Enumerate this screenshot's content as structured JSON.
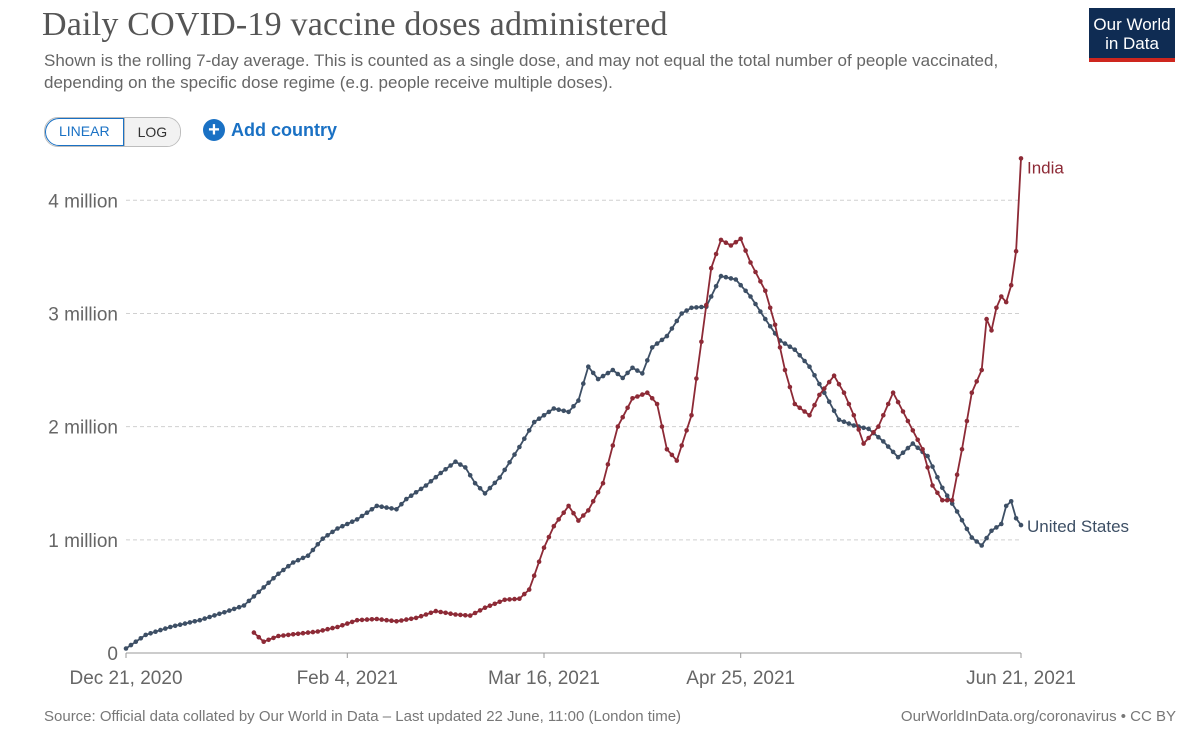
{
  "header": {
    "title": "Daily COVID-19 vaccine doses administered",
    "subtitle": "Shown is the rolling 7-day average. This is counted as a single dose, and may not equal the total number of people vaccinated, depending on the specific dose regime (e.g. people receive multiple doses).",
    "logo_line1": "Our World",
    "logo_line2": "in Data"
  },
  "controls": {
    "linear_label": "LINEAR",
    "log_label": "LOG",
    "add_country_label": "Add country",
    "add_icon": "plus-circle-icon"
  },
  "footer": {
    "source": "Source: Official data collated by Our World in Data – Last updated 22 June, 11:00 (London time)",
    "credit": "OurWorldInData.org/coronavirus • CC BY"
  },
  "colors": {
    "india": "#8d2a36",
    "united_states": "#3d4f65",
    "grid": "#d0d0d0",
    "accent": "#1a71c4",
    "logo_bg": "#0f2c53",
    "logo_bar": "#ce261e"
  },
  "chart_data": {
    "type": "line",
    "title": "Daily COVID-19 vaccine doses administered",
    "xlabel": "",
    "ylabel": "",
    "x_start": "2020-12-21",
    "x_end": "2021-06-21",
    "x_ticks": [
      "Dec 21, 2020",
      "Feb 4, 2021",
      "Mar 16, 2021",
      "Apr 25, 2021",
      "Jun 21, 2021"
    ],
    "y_ticks": [
      {
        "value": 0,
        "label": "0"
      },
      {
        "value": 1000000,
        "label": "1 million"
      },
      {
        "value": 2000000,
        "label": "2 million"
      },
      {
        "value": 3000000,
        "label": "3 million"
      },
      {
        "value": 4000000,
        "label": "4 million"
      }
    ],
    "ylim": [
      0,
      4400000
    ],
    "grid": true,
    "legend": "inline-right",
    "series": [
      {
        "name": "United States",
        "color": "#3d4f65",
        "points": [
          [
            "2020-12-21",
            40000
          ],
          [
            "2020-12-25",
            160000
          ],
          [
            "2020-12-30",
            230000
          ],
          [
            "2021-01-05",
            290000
          ],
          [
            "2021-01-10",
            360000
          ],
          [
            "2021-01-14",
            420000
          ],
          [
            "2021-01-18",
            580000
          ],
          [
            "2021-01-21",
            700000
          ],
          [
            "2021-01-24",
            800000
          ],
          [
            "2021-01-27",
            860000
          ],
          [
            "2021-01-30",
            1010000
          ],
          [
            "2021-02-02",
            1100000
          ],
          [
            "2021-02-06",
            1180000
          ],
          [
            "2021-02-10",
            1300000
          ],
          [
            "2021-02-14",
            1270000
          ],
          [
            "2021-02-16",
            1360000
          ],
          [
            "2021-02-20",
            1480000
          ],
          [
            "2021-02-23",
            1590000
          ],
          [
            "2021-02-26",
            1690000
          ],
          [
            "2021-02-28",
            1640000
          ],
          [
            "2021-03-02",
            1500000
          ],
          [
            "2021-03-04",
            1410000
          ],
          [
            "2021-03-07",
            1550000
          ],
          [
            "2021-03-11",
            1820000
          ],
          [
            "2021-03-14",
            2040000
          ],
          [
            "2021-03-18",
            2160000
          ],
          [
            "2021-03-21",
            2130000
          ],
          [
            "2021-03-23",
            2230000
          ],
          [
            "2021-03-25",
            2530000
          ],
          [
            "2021-03-27",
            2420000
          ],
          [
            "2021-03-30",
            2500000
          ],
          [
            "2021-04-01",
            2430000
          ],
          [
            "2021-04-03",
            2520000
          ],
          [
            "2021-04-05",
            2470000
          ],
          [
            "2021-04-07",
            2700000
          ],
          [
            "2021-04-10",
            2800000
          ],
          [
            "2021-04-13",
            3000000
          ],
          [
            "2021-04-15",
            3050000
          ],
          [
            "2021-04-18",
            3060000
          ],
          [
            "2021-04-21",
            3330000
          ],
          [
            "2021-04-24",
            3300000
          ],
          [
            "2021-04-27",
            3150000
          ],
          [
            "2021-04-30",
            2950000
          ],
          [
            "2021-05-03",
            2760000
          ],
          [
            "2021-05-06",
            2680000
          ],
          [
            "2021-05-09",
            2530000
          ],
          [
            "2021-05-12",
            2300000
          ],
          [
            "2021-05-15",
            2060000
          ],
          [
            "2021-05-18",
            2010000
          ],
          [
            "2021-05-21",
            1980000
          ],
          [
            "2021-05-24",
            1870000
          ],
          [
            "2021-05-27",
            1730000
          ],
          [
            "2021-05-30",
            1850000
          ],
          [
            "2021-06-02",
            1740000
          ],
          [
            "2021-06-05",
            1460000
          ],
          [
            "2021-06-08",
            1250000
          ],
          [
            "2021-06-11",
            1020000
          ],
          [
            "2021-06-13",
            950000
          ],
          [
            "2021-06-15",
            1080000
          ],
          [
            "2021-06-17",
            1140000
          ],
          [
            "2021-06-18",
            1300000
          ],
          [
            "2021-06-19",
            1340000
          ],
          [
            "2021-06-20",
            1190000
          ],
          [
            "2021-06-21",
            1130000
          ]
        ]
      },
      {
        "name": "India",
        "color": "#8d2a36",
        "points": [
          [
            "2021-01-16",
            180000
          ],
          [
            "2021-01-18",
            100000
          ],
          [
            "2021-01-21",
            150000
          ],
          [
            "2021-01-25",
            170000
          ],
          [
            "2021-01-29",
            190000
          ],
          [
            "2021-02-02",
            230000
          ],
          [
            "2021-02-06",
            290000
          ],
          [
            "2021-02-10",
            300000
          ],
          [
            "2021-02-14",
            280000
          ],
          [
            "2021-02-18",
            310000
          ],
          [
            "2021-02-22",
            370000
          ],
          [
            "2021-02-26",
            340000
          ],
          [
            "2021-03-01",
            330000
          ],
          [
            "2021-03-04",
            400000
          ],
          [
            "2021-03-08",
            470000
          ],
          [
            "2021-03-11",
            480000
          ],
          [
            "2021-03-13",
            560000
          ],
          [
            "2021-03-16",
            930000
          ],
          [
            "2021-03-18",
            1120000
          ],
          [
            "2021-03-21",
            1300000
          ],
          [
            "2021-03-23",
            1170000
          ],
          [
            "2021-03-25",
            1260000
          ],
          [
            "2021-03-28",
            1500000
          ],
          [
            "2021-03-31",
            2000000
          ],
          [
            "2021-04-03",
            2250000
          ],
          [
            "2021-04-06",
            2300000
          ],
          [
            "2021-04-08",
            2200000
          ],
          [
            "2021-04-10",
            1800000
          ],
          [
            "2021-04-12",
            1700000
          ],
          [
            "2021-04-15",
            2100000
          ],
          [
            "2021-04-17",
            2750000
          ],
          [
            "2021-04-19",
            3400000
          ],
          [
            "2021-04-21",
            3650000
          ],
          [
            "2021-04-23",
            3600000
          ],
          [
            "2021-04-25",
            3660000
          ],
          [
            "2021-04-27",
            3450000
          ],
          [
            "2021-04-30",
            3200000
          ],
          [
            "2021-05-02",
            2900000
          ],
          [
            "2021-05-04",
            2500000
          ],
          [
            "2021-05-06",
            2200000
          ],
          [
            "2021-05-09",
            2100000
          ],
          [
            "2021-05-11",
            2280000
          ],
          [
            "2021-05-14",
            2450000
          ],
          [
            "2021-05-16",
            2300000
          ],
          [
            "2021-05-18",
            2100000
          ],
          [
            "2021-05-20",
            1850000
          ],
          [
            "2021-05-23",
            2000000
          ],
          [
            "2021-05-26",
            2300000
          ],
          [
            "2021-05-29",
            2050000
          ],
          [
            "2021-06-01",
            1800000
          ],
          [
            "2021-06-03",
            1480000
          ],
          [
            "2021-06-05",
            1350000
          ],
          [
            "2021-06-07",
            1350000
          ],
          [
            "2021-06-09",
            1800000
          ],
          [
            "2021-06-11",
            2300000
          ],
          [
            "2021-06-13",
            2500000
          ],
          [
            "2021-06-14",
            2950000
          ],
          [
            "2021-06-15",
            2850000
          ],
          [
            "2021-06-16",
            3050000
          ],
          [
            "2021-06-17",
            3150000
          ],
          [
            "2021-06-18",
            3100000
          ],
          [
            "2021-06-19",
            3250000
          ],
          [
            "2021-06-20",
            3550000
          ],
          [
            "2021-06-21",
            4370000
          ]
        ]
      }
    ]
  }
}
